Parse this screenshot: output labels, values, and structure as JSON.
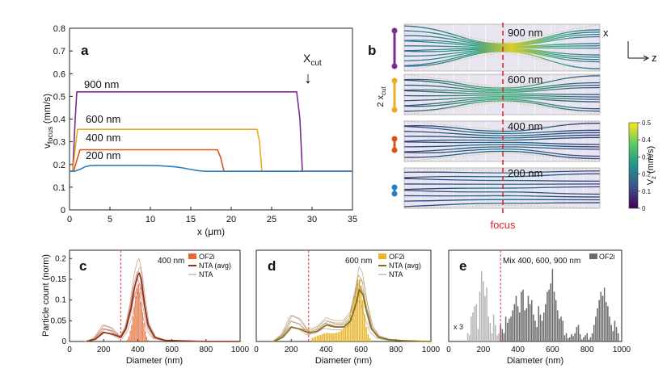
{
  "colors": {
    "c200": "#2a7fc0",
    "c400": "#d9541a",
    "c600": "#eaac20",
    "c900": "#7a2a8c",
    "ofOrange": "#e8672f",
    "nta400": "#8f2f16",
    "ofGold": "#eab52b",
    "nta600": "#8a6f1b",
    "ofGray": "#6b6b6b",
    "ofLight": "#b5b5b5",
    "focus": "#e0242a"
  },
  "panel_a": {
    "letter": "a",
    "ylabel_main": "v",
    "ylabel_sub": "focus",
    "ylabel_unit": " (mm/s)",
    "xlabel_main": "x (",
    "xlabel_mu": "μm",
    "xlabel_end": ")",
    "xcut_main": "X",
    "xcut_sub": "cut",
    "arrow": "↓",
    "labels": [
      "900 nm",
      "600 nm",
      "400 nm",
      "200 nm"
    ]
  },
  "panel_b": {
    "letter": "b",
    "labels": [
      "900 nm",
      "600 nm",
      "400 nm",
      "200 nm"
    ],
    "focus_label": "focus",
    "axis_x": "x",
    "axis_z": "z",
    "xcut_prefix": "2 x",
    "xcut_sub": "cut",
    "colorbar": {
      "label_main": "V",
      "label_sub": "z",
      "label_unit": " (mm/s)",
      "ticks": [
        "0.5",
        "0.4",
        "0.3",
        "0.2",
        "0.1",
        "0"
      ]
    }
  },
  "panel_c": {
    "letter": "c",
    "title": "400 nm",
    "ylabel": "Particle count (norm)",
    "xlabel": "Diameter (nm)",
    "legend": [
      "OF2i",
      "NTA (avg)",
      "NTA"
    ]
  },
  "panel_d": {
    "letter": "d",
    "title": "600 nm",
    "xlabel": "Diameter (nm)",
    "legend": [
      "OF2i",
      "NTA (avg)",
      "NTA"
    ]
  },
  "panel_e": {
    "letter": "e",
    "title": "Mix 400, 600, 900 nm",
    "xlabel": "Diameter (nm)",
    "legend": [
      "OF2i"
    ],
    "annotation": "x 3"
  },
  "chart_data": [
    {
      "id": "a",
      "type": "line",
      "title": "",
      "xlabel": "x (μm)",
      "ylabel": "v_focus (mm/s)",
      "xlim": [
        0,
        35
      ],
      "ylim": [
        0,
        0.8
      ],
      "xticks": [
        0,
        5,
        10,
        15,
        20,
        25,
        30,
        35
      ],
      "yticks": [
        0,
        0.1,
        0.2,
        0.3,
        0.4,
        0.5,
        0.6,
        0.7,
        0.8
      ],
      "series": [
        {
          "name": "900 nm",
          "color": "#7a2a8c",
          "x": [
            0,
            0.4,
            0.7,
            0.9,
            28.1,
            28.5,
            28.8,
            35
          ],
          "y": [
            0.17,
            0.17,
            0.4,
            0.52,
            0.52,
            0.4,
            0.17,
            0.17
          ]
        },
        {
          "name": "600 nm",
          "color": "#eaac20",
          "x": [
            0,
            0.4,
            0.8,
            1.0,
            23.2,
            23.5,
            23.8,
            35
          ],
          "y": [
            0.17,
            0.17,
            0.3,
            0.355,
            0.355,
            0.3,
            0.17,
            0.17
          ]
        },
        {
          "name": "400 nm",
          "color": "#d9541a",
          "x": [
            0,
            0.5,
            1.0,
            1.3,
            18.3,
            18.7,
            19.1,
            35
          ],
          "y": [
            0.17,
            0.17,
            0.23,
            0.265,
            0.265,
            0.23,
            0.17,
            0.17
          ]
        },
        {
          "name": "200 nm",
          "color": "#2a7fc0",
          "x": [
            0,
            0.6,
            1.0,
            1.4,
            1.9,
            2.5,
            3.2,
            9,
            11,
            13,
            14,
            15,
            16,
            17,
            35
          ],
          "y": [
            0.17,
            0.17,
            0.175,
            0.18,
            0.19,
            0.195,
            0.196,
            0.196,
            0.195,
            0.19,
            0.185,
            0.178,
            0.172,
            0.17,
            0.17
          ]
        }
      ],
      "annotations": [
        "900 nm",
        "600 nm",
        "400 nm",
        "200 nm",
        "X_cut"
      ],
      "xcut": 28.6
    },
    {
      "id": "c",
      "type": "bar",
      "title": "400 nm",
      "xlabel": "Diameter (nm)",
      "ylabel": "Particle count (norm)",
      "xlim": [
        0,
        1000
      ],
      "ylim": [
        0,
        0.22
      ],
      "xticks": [
        0,
        200,
        400,
        600,
        800,
        1000
      ],
      "yticks": [
        0,
        0.05,
        0.1,
        0.15,
        0.2
      ],
      "cutoff": 300,
      "bin_width": 8,
      "bins": {
        "x": [
          340,
          348,
          356,
          364,
          372,
          380,
          388,
          396,
          404,
          412,
          420,
          428,
          436,
          444,
          452,
          460
        ],
        "values": [
          0.005,
          0.012,
          0.025,
          0.04,
          0.06,
          0.085,
          0.11,
          0.13,
          0.138,
          0.12,
          0.095,
          0.07,
          0.045,
          0.025,
          0.012,
          0.004
        ]
      },
      "series": [
        {
          "name": "NTA (avg)",
          "color": "#8f2f16",
          "x": [
            100,
            150,
            200,
            250,
            300,
            330,
            360,
            380,
            400,
            410,
            420,
            440,
            460,
            500,
            560,
            640,
            720,
            800,
            900,
            1000
          ],
          "y": [
            0,
            0.005,
            0.022,
            0.018,
            0.01,
            0.03,
            0.08,
            0.13,
            0.16,
            0.165,
            0.15,
            0.09,
            0.04,
            0.01,
            0.003,
            0.002,
            0.001,
            0,
            0,
            0
          ]
        }
      ],
      "nta_individual_peaks": [
        0.12,
        0.15,
        0.17,
        0.2,
        0.14,
        0.16,
        0.18,
        0.13
      ]
    },
    {
      "id": "d",
      "type": "bar",
      "title": "600 nm",
      "xlabel": "Diameter (nm)",
      "xlim": [
        0,
        1000
      ],
      "ylim": [
        0,
        0.22
      ],
      "xticks": [
        0,
        200,
        400,
        600,
        800,
        1000
      ],
      "cutoff": 300,
      "bin_width": 10,
      "bins": {
        "x": [
          320,
          330,
          340,
          350,
          360,
          370,
          380,
          390,
          400,
          410,
          420,
          430,
          440,
          450,
          460,
          470,
          480,
          490,
          500,
          510,
          520,
          530,
          540,
          550,
          560,
          570,
          580,
          590,
          600,
          610,
          620,
          630,
          640,
          650,
          660
        ],
        "values": [
          0.008,
          0.01,
          0.012,
          0.014,
          0.015,
          0.016,
          0.018,
          0.02,
          0.02,
          0.021,
          0.02,
          0.02,
          0.02,
          0.02,
          0.021,
          0.022,
          0.024,
          0.027,
          0.03,
          0.035,
          0.04,
          0.05,
          0.065,
          0.085,
          0.11,
          0.13,
          0.148,
          0.15,
          0.135,
          0.1,
          0.065,
          0.035,
          0.018,
          0.008,
          0.003
        ]
      },
      "series": [
        {
          "name": "NTA (avg)",
          "color": "#8a6f1b",
          "x": [
            100,
            150,
            200,
            250,
            300,
            350,
            400,
            450,
            500,
            540,
            570,
            590,
            610,
            630,
            660,
            700,
            760,
            840,
            920,
            1000
          ],
          "y": [
            0,
            0.01,
            0.035,
            0.03,
            0.02,
            0.025,
            0.04,
            0.035,
            0.035,
            0.05,
            0.09,
            0.125,
            0.115,
            0.075,
            0.03,
            0.01,
            0.004,
            0.002,
            0.001,
            0
          ]
        }
      ],
      "nta_individual_peaks": [
        0.1,
        0.14,
        0.16,
        0.18,
        0.12,
        0.13,
        0.15
      ]
    },
    {
      "id": "e",
      "type": "bar",
      "title": "Mix 400, 600, 900 nm",
      "xlabel": "Diameter (nm)",
      "xlim": [
        0,
        1000
      ],
      "ylim": [
        0,
        0.22
      ],
      "xticks": [
        0,
        200,
        400,
        600,
        800,
        1000
      ],
      "cutoff": 300,
      "bin_width": 10,
      "annotation": "x 3",
      "light_bins": {
        "x": [
          110,
          120,
          130,
          140,
          150,
          160,
          170,
          180,
          190,
          200,
          210,
          220,
          230,
          240,
          250,
          260,
          270,
          280,
          290
        ],
        "values": [
          0.02,
          0.015,
          0.06,
          0.07,
          0.085,
          0.09,
          0.03,
          0.12,
          0.17,
          0.145,
          0.11,
          0.13,
          0.06,
          0.045,
          0.02,
          0.065,
          0.04,
          0.015,
          0.02
        ]
      },
      "bins": {
        "x": [
          300,
          310,
          320,
          330,
          340,
          350,
          360,
          370,
          380,
          390,
          400,
          410,
          420,
          430,
          440,
          450,
          460,
          470,
          480,
          490,
          500,
          510,
          520,
          530,
          540,
          550,
          560,
          570,
          580,
          590,
          600,
          610,
          620,
          630,
          640,
          650,
          660,
          670,
          680,
          690,
          700,
          710,
          720,
          730,
          740,
          750,
          760,
          770,
          780,
          790,
          800,
          810,
          820,
          830,
          840,
          850,
          860,
          870,
          880,
          890,
          900,
          910,
          920,
          930,
          940,
          950,
          960,
          970,
          980
        ],
        "values": [
          0.04,
          0.03,
          0.02,
          0.06,
          0.045,
          0.055,
          0.06,
          0.075,
          0.09,
          0.11,
          0.085,
          0.07,
          0.12,
          0.125,
          0.075,
          0.08,
          0.11,
          0.09,
          0.1,
          0.065,
          0.05,
          0.035,
          0.085,
          0.065,
          0.05,
          0.07,
          0.09,
          0.12,
          0.125,
          0.14,
          0.175,
          0.12,
          0.1,
          0.075,
          0.055,
          0.06,
          0.05,
          0.015,
          0.02,
          0.008,
          0.01,
          0.018,
          0.013,
          0.02,
          0.035,
          0.04,
          0.018,
          0.005,
          0.01,
          0.015,
          0.02,
          0.005,
          0.01,
          0.02,
          0.04,
          0.06,
          0.08,
          0.1,
          0.12,
          0.11,
          0.13,
          0.095,
          0.085,
          0.06,
          0.04,
          0.025,
          0.05,
          0.035,
          0.02
        ]
      }
    }
  ]
}
